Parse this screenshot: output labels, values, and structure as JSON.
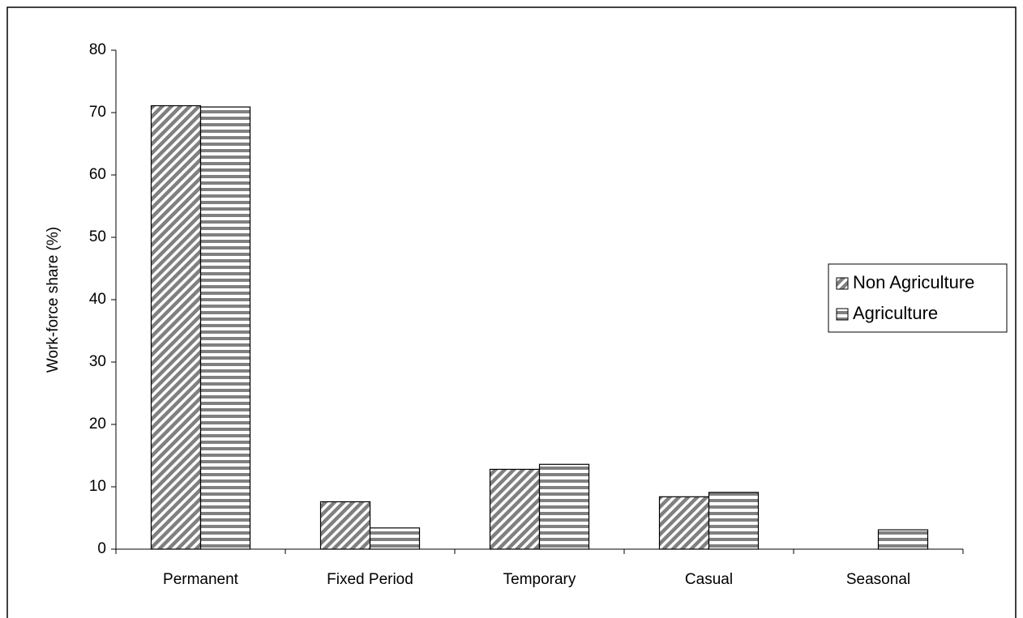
{
  "chart_data": {
    "type": "bar",
    "y_label": "Work-force share (%)",
    "categories": [
      "Permanent",
      "Fixed Period",
      "Temporary",
      "Casual",
      "Seasonal"
    ],
    "series": [
      {
        "name": "Non Agriculture",
        "color": "#808080",
        "pattern": "diagonal",
        "values": [
          71.1,
          7.6,
          12.8,
          8.4,
          0
        ]
      },
      {
        "name": "Agriculture",
        "color": "#808080",
        "pattern": "horizontal",
        "values": [
          70.9,
          3.4,
          13.6,
          9.1,
          3.1
        ]
      }
    ],
    "ylim": [
      0,
      80
    ],
    "yticks": [
      0,
      10,
      20,
      30,
      40,
      50,
      60,
      70,
      80
    ],
    "grid": false,
    "legend": "right"
  }
}
